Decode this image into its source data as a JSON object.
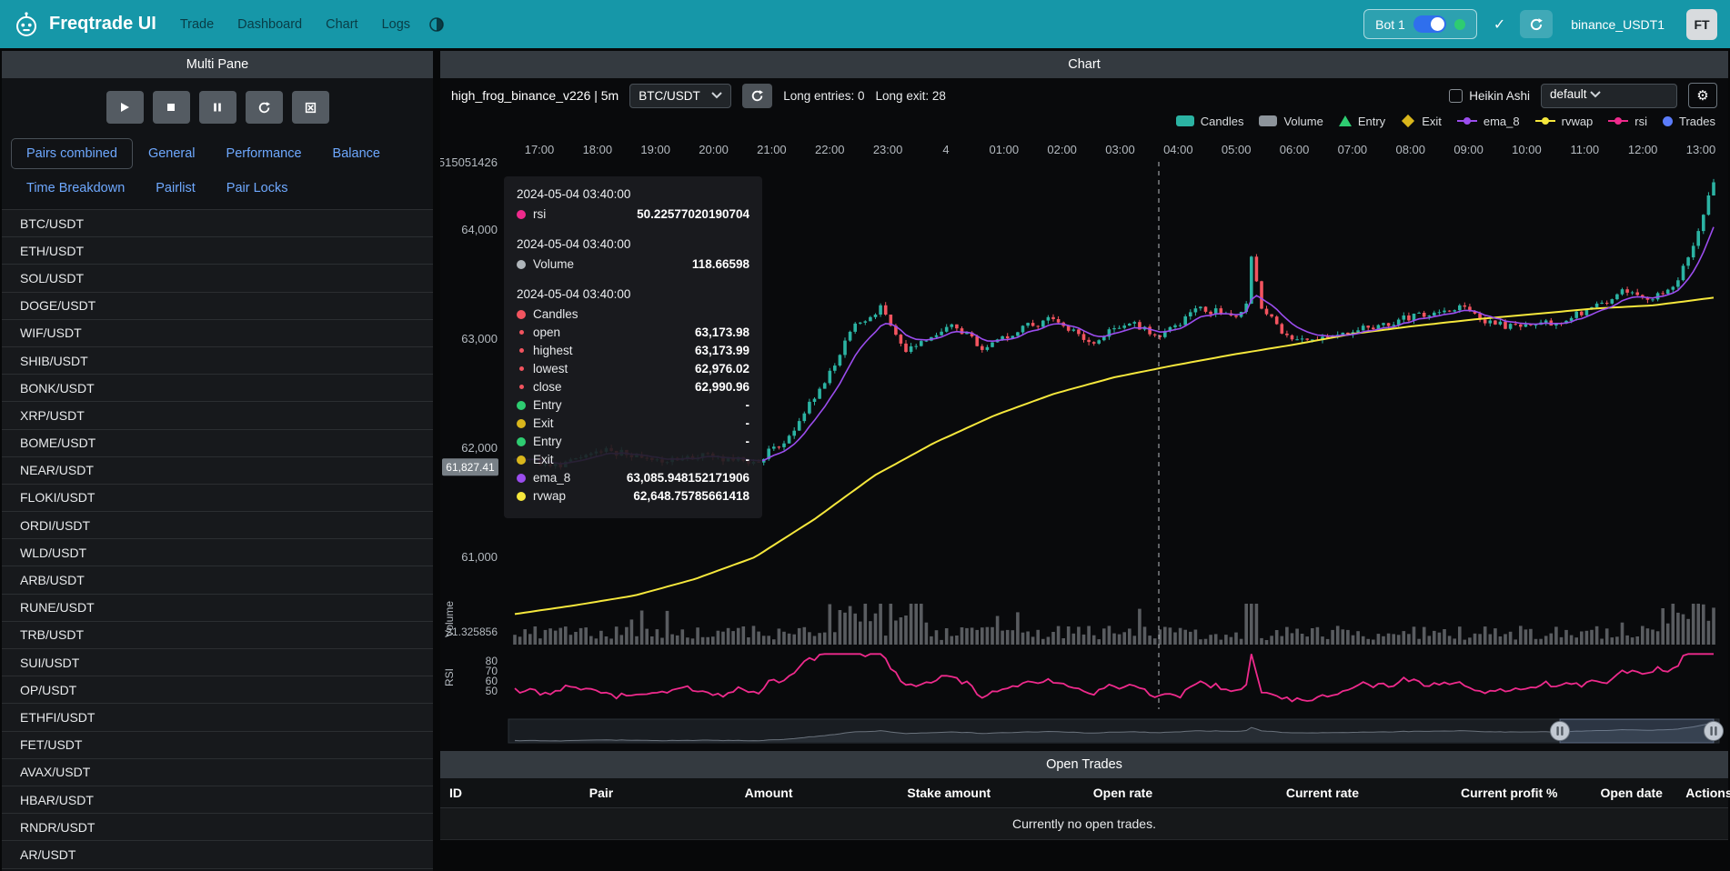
{
  "navbar": {
    "brand": "Freqtrade UI",
    "links": [
      {
        "label": "Trade"
      },
      {
        "label": "Dashboard"
      },
      {
        "label": "Chart"
      },
      {
        "label": "Logs"
      }
    ],
    "bot_name": "Bot 1",
    "login": "binance_USDT1",
    "avatar": "FT"
  },
  "sidebar": {
    "title": "Multi Pane",
    "tabs": [
      {
        "label": "Pairs combined",
        "state": "active"
      },
      {
        "label": "General"
      },
      {
        "label": "Performance"
      },
      {
        "label": "Balance"
      },
      {
        "label": "Time Breakdown"
      },
      {
        "label": "Pairlist"
      },
      {
        "label": "Pair Locks"
      }
    ],
    "pairs": [
      "BTC/USDT",
      "ETH/USDT",
      "SOL/USDT",
      "DOGE/USDT",
      "WIF/USDT",
      "SHIB/USDT",
      "BONK/USDT",
      "XRP/USDT",
      "BOME/USDT",
      "NEAR/USDT",
      "FLOKI/USDT",
      "ORDI/USDT",
      "WLD/USDT",
      "ARB/USDT",
      "RUNE/USDT",
      "TRB/USDT",
      "SUI/USDT",
      "OP/USDT",
      "ETHFI/USDT",
      "FET/USDT",
      "AVAX/USDT",
      "HBAR/USDT",
      "RNDR/USDT",
      "AR/USDT"
    ]
  },
  "chart": {
    "panel_title": "Chart",
    "strategy_label": "high_frog_binance_v226 | 5m",
    "pair_select": "BTC/USDT",
    "entries_label": "Long entries: 0",
    "exits_label": "Long exit: 28",
    "heikin_ashi_label": "Heikin Ashi",
    "plot_config_select": "default",
    "x_labels": [
      "17:00",
      "18:00",
      "19:00",
      "20:00",
      "21:00",
      "22:00",
      "23:00",
      "4",
      "01:00",
      "02:00",
      "03:00",
      "04:00",
      "05:00",
      "06:00",
      "07:00",
      "08:00",
      "09:00",
      "10:00",
      "11:00",
      "12:00",
      "13:00"
    ],
    "y_axis_top_label": "515051426",
    "price_labels": [
      "64,000",
      "63,000",
      "62,000",
      "61,000"
    ],
    "price_tag": "61,827.41",
    "volume_tick": "21.325856",
    "volume_axis_title": "Volume",
    "rsi_axis_title": "RSI",
    "rsi_ticks": [
      "80",
      "70",
      "60",
      "50"
    ],
    "legend": [
      {
        "label": "Candles",
        "shape": "rect",
        "color": "#2bb3a3"
      },
      {
        "label": "Volume",
        "shape": "rect",
        "color": "#8d949b"
      },
      {
        "label": "Entry",
        "shape": "tri",
        "color": "#2ecc71"
      },
      {
        "label": "Exit",
        "shape": "diamond",
        "color": "#d9b61c"
      },
      {
        "label": "ema_8",
        "shape": "line",
        "color": "#9b4dee"
      },
      {
        "label": "rvwap",
        "shape": "line",
        "color": "#f5e73c"
      },
      {
        "label": "rsi",
        "shape": "line",
        "color": "#ee2a8c"
      },
      {
        "label": "Trades",
        "shape": "circle",
        "color": "#5b7cfa"
      }
    ],
    "colors": {
      "up": "#2bb3a3",
      "down": "#f2545f",
      "ema": "#9b4dee",
      "rvwap": "#f5e73c",
      "rsi": "#ee2a8c",
      "volume": "#9aa0a6"
    }
  },
  "tooltip": {
    "groups": [
      {
        "date": "2024-05-04 03:40:00",
        "rows": [
          {
            "color": "#ee2a8c",
            "label": "rsi",
            "value": "50.22577020190704"
          }
        ]
      },
      {
        "date": "2024-05-04 03:40:00",
        "rows": [
          {
            "color": "#b0b6bb",
            "label": "Volume",
            "value": "118.66598"
          }
        ]
      },
      {
        "date": "2024-05-04 03:40:00",
        "rows": [
          {
            "color": "#f2545f",
            "label": "Candles",
            "value": ""
          },
          {
            "color": "#f2545f",
            "label": "open",
            "value": "63,173.98",
            "small": true
          },
          {
            "color": "#f2545f",
            "label": "highest",
            "value": "63,173.99",
            "small": true
          },
          {
            "color": "#f2545f",
            "label": "lowest",
            "value": "62,976.02",
            "small": true
          },
          {
            "color": "#f2545f",
            "label": "close",
            "value": "62,990.96",
            "small": true
          },
          {
            "color": "#2ecc71",
            "label": "Entry",
            "value": "-"
          },
          {
            "color": "#d9b61c",
            "label": "Exit",
            "value": "-"
          },
          {
            "color": "#2ecc71",
            "label": "Entry",
            "value": "-"
          },
          {
            "color": "#d9b61c",
            "label": "Exit",
            "value": "-"
          },
          {
            "color": "#9b4dee",
            "label": "ema_8",
            "value": "63,085.948152171906"
          },
          {
            "color": "#f5e73c",
            "label": "rvwap",
            "value": "62,648.75785661418"
          }
        ]
      }
    ]
  },
  "open_trades": {
    "title": "Open Trades",
    "columns": [
      "ID",
      "Pair",
      "Amount",
      "Stake amount",
      "Open rate",
      "Current rate",
      "Current profit %",
      "Open date",
      "Actions"
    ],
    "empty_message": "Currently no open trades."
  }
}
